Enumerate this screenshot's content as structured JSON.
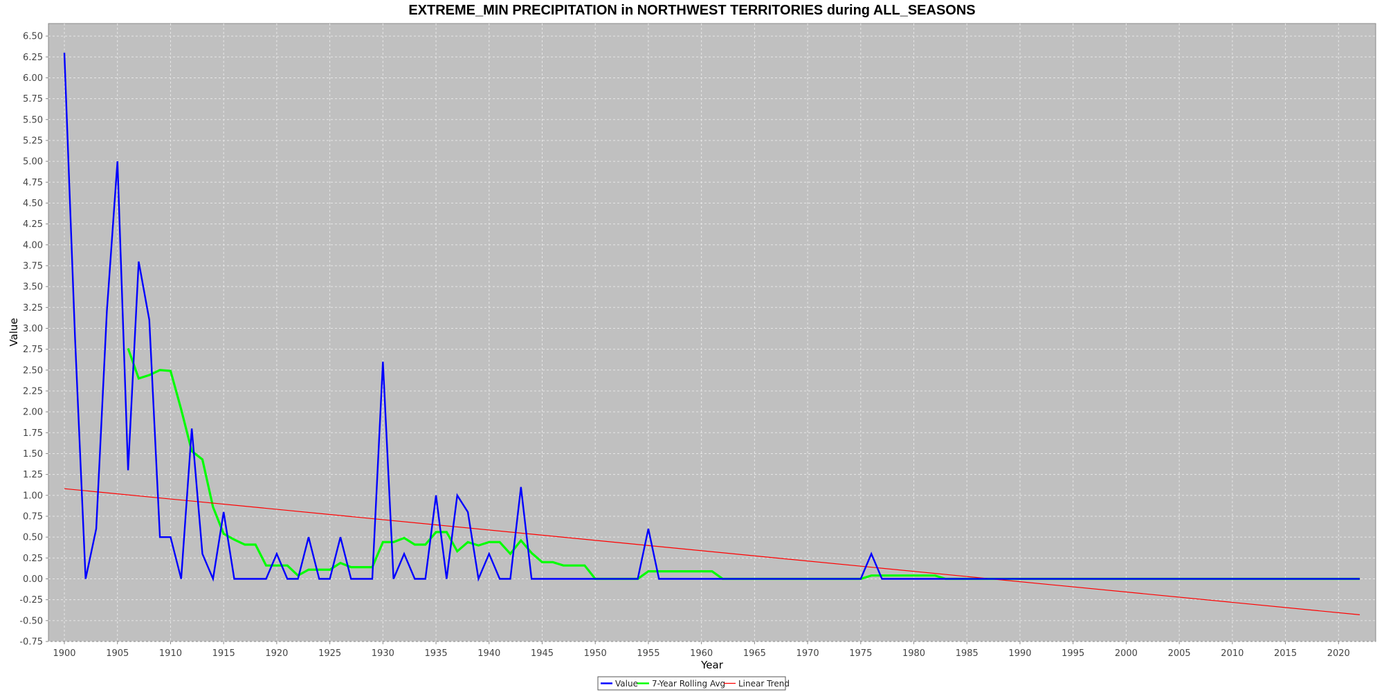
{
  "chart_data": {
    "type": "line",
    "title": "EXTREME_MIN PRECIPITATION in NORTHWEST TERRITORIES during ALL_SEASONS",
    "xlabel": "Year",
    "ylabel": "Value",
    "xlim": [
      1898.5,
      2023.5
    ],
    "ylim": [
      -0.75,
      6.65
    ],
    "x_ticks": [
      1900,
      1905,
      1910,
      1915,
      1920,
      1925,
      1930,
      1935,
      1940,
      1945,
      1950,
      1955,
      1960,
      1965,
      1970,
      1975,
      1980,
      1985,
      1990,
      1995,
      2000,
      2005,
      2010,
      2015,
      2020
    ],
    "y_ticks": [
      "-0.75",
      "-0.50",
      "-0.25",
      "0.00",
      "0.25",
      "0.50",
      "0.75",
      "1.00",
      "1.25",
      "1.50",
      "1.75",
      "2.00",
      "2.25",
      "2.50",
      "2.75",
      "3.00",
      "3.25",
      "3.50",
      "3.75",
      "4.00",
      "4.25",
      "4.50",
      "4.75",
      "5.00",
      "5.25",
      "5.50",
      "5.75",
      "6.00",
      "6.25",
      "6.50"
    ],
    "grid": true,
    "legend_position": "bottom-center",
    "series": [
      {
        "name": "Value",
        "color": "#0000ff",
        "x": [
          1900,
          1901,
          1902,
          1903,
          1904,
          1905,
          1906,
          1907,
          1908,
          1909,
          1910,
          1911,
          1912,
          1913,
          1914,
          1915,
          1916,
          1917,
          1918,
          1919,
          1920,
          1921,
          1922,
          1923,
          1924,
          1925,
          1926,
          1927,
          1928,
          1929,
          1930,
          1931,
          1932,
          1933,
          1934,
          1935,
          1936,
          1937,
          1938,
          1939,
          1940,
          1941,
          1942,
          1943,
          1944,
          1945,
          1946,
          1947,
          1948,
          1949,
          1950,
          1951,
          1952,
          1953,
          1954,
          1955,
          1956,
          1957,
          1958,
          1959,
          1960,
          1961,
          1962,
          1963,
          1964,
          1965,
          1966,
          1967,
          1968,
          1969,
          1970,
          1971,
          1972,
          1973,
          1974,
          1975,
          1976,
          1977,
          1978,
          1979,
          1980,
          1981,
          1982,
          1983,
          1984,
          1985,
          1986,
          1987,
          1988,
          1989,
          1990,
          1991,
          1992,
          1993,
          1994,
          1995,
          1996,
          1997,
          1998,
          1999,
          2000,
          2001,
          2002,
          2003,
          2004,
          2005,
          2006,
          2007,
          2008,
          2009,
          2010,
          2011,
          2012,
          2013,
          2014,
          2015,
          2016,
          2017,
          2018,
          2019,
          2020,
          2021,
          2022
        ],
        "values": [
          6.3,
          2.9,
          0,
          0.6,
          3.2,
          5.0,
          1.3,
          3.8,
          3.1,
          0.5,
          0.5,
          0,
          1.8,
          0.3,
          0,
          0.8,
          0,
          0,
          0,
          0,
          0.3,
          0,
          0,
          0.5,
          0,
          0,
          0.5,
          0,
          0,
          0,
          2.6,
          0,
          0.3,
          0,
          0,
          1.0,
          0,
          1.0,
          0.8,
          0,
          0.3,
          0,
          0,
          1.1,
          0,
          0,
          0,
          0,
          0,
          0,
          0,
          0,
          0,
          0,
          0,
          0.6,
          0,
          0,
          0,
          0,
          0,
          0,
          0,
          0,
          0,
          0,
          0,
          0,
          0,
          0,
          0,
          0,
          0,
          0,
          0,
          0,
          0.3,
          0,
          0,
          0,
          0,
          0,
          0,
          0,
          0,
          0,
          0,
          0,
          0,
          0,
          0,
          0,
          0,
          0,
          0,
          0,
          0,
          0,
          0,
          0,
          0,
          0,
          0,
          0,
          0,
          0,
          0,
          0,
          0,
          0,
          0,
          0,
          0,
          0,
          0,
          0,
          0,
          0,
          0,
          0,
          0,
          0,
          0
        ]
      },
      {
        "name": "7-Year Rolling Avg",
        "color": "#00ff00",
        "x": [
          1906,
          1907,
          1908,
          1909,
          1910,
          1911,
          1912,
          1913,
          1914,
          1915,
          1916,
          1917,
          1918,
          1919,
          1920,
          1921,
          1922,
          1923,
          1924,
          1925,
          1926,
          1927,
          1928,
          1929,
          1930,
          1931,
          1932,
          1933,
          1934,
          1935,
          1936,
          1937,
          1938,
          1939,
          1940,
          1941,
          1942,
          1943,
          1944,
          1945,
          1946,
          1947,
          1948,
          1949,
          1950,
          1951,
          1952,
          1953,
          1954,
          1955,
          1956,
          1957,
          1958,
          1959,
          1960,
          1961,
          1962,
          1963,
          1964,
          1965,
          1966,
          1967,
          1968,
          1969,
          1970,
          1971,
          1972,
          1973,
          1974,
          1975,
          1976,
          1977,
          1978,
          1979,
          1980,
          1981,
          1982,
          1983,
          1984,
          1985,
          1986,
          1987,
          1988,
          1989,
          1990,
          1991,
          1992,
          1993,
          1994,
          1995,
          1996,
          1997,
          1998,
          1999,
          2000,
          2001,
          2002,
          2003,
          2004,
          2005,
          2006,
          2007,
          2008,
          2009,
          2010,
          2011,
          2012,
          2013,
          2014,
          2015,
          2016,
          2017,
          2018,
          2019,
          2020,
          2021,
          2022
        ],
        "values": [
          2.76,
          2.4,
          2.44,
          2.5,
          2.49,
          2.03,
          1.53,
          1.43,
          0.86,
          0.54,
          0.47,
          0.41,
          0.41,
          0.16,
          0.16,
          0.16,
          0.04,
          0.11,
          0.11,
          0.11,
          0.19,
          0.14,
          0.14,
          0.14,
          0.44,
          0.44,
          0.49,
          0.41,
          0.41,
          0.56,
          0.56,
          0.33,
          0.44,
          0.4,
          0.44,
          0.44,
          0.3,
          0.46,
          0.31,
          0.2,
          0.2,
          0.16,
          0.16,
          0.16,
          0,
          0,
          0,
          0,
          0,
          0.09,
          0.09,
          0.09,
          0.09,
          0.09,
          0.09,
          0.09,
          0,
          0,
          0,
          0,
          0,
          0,
          0,
          0,
          0,
          0,
          0,
          0,
          0,
          0,
          0.04,
          0.04,
          0.04,
          0.04,
          0.04,
          0.04,
          0.04,
          0,
          0,
          0,
          0,
          0,
          0,
          0,
          0,
          0,
          0,
          0,
          0,
          0,
          0,
          0,
          0,
          0,
          0,
          0,
          0,
          0,
          0,
          0,
          0,
          0,
          0,
          0,
          0,
          0,
          0,
          0,
          0,
          0,
          0,
          0,
          0,
          0,
          0,
          0,
          0
        ]
      },
      {
        "name": "Linear Trend",
        "color": "#ff0000",
        "x": [
          1900,
          2022
        ],
        "values": [
          1.08,
          -0.43
        ]
      }
    ]
  }
}
